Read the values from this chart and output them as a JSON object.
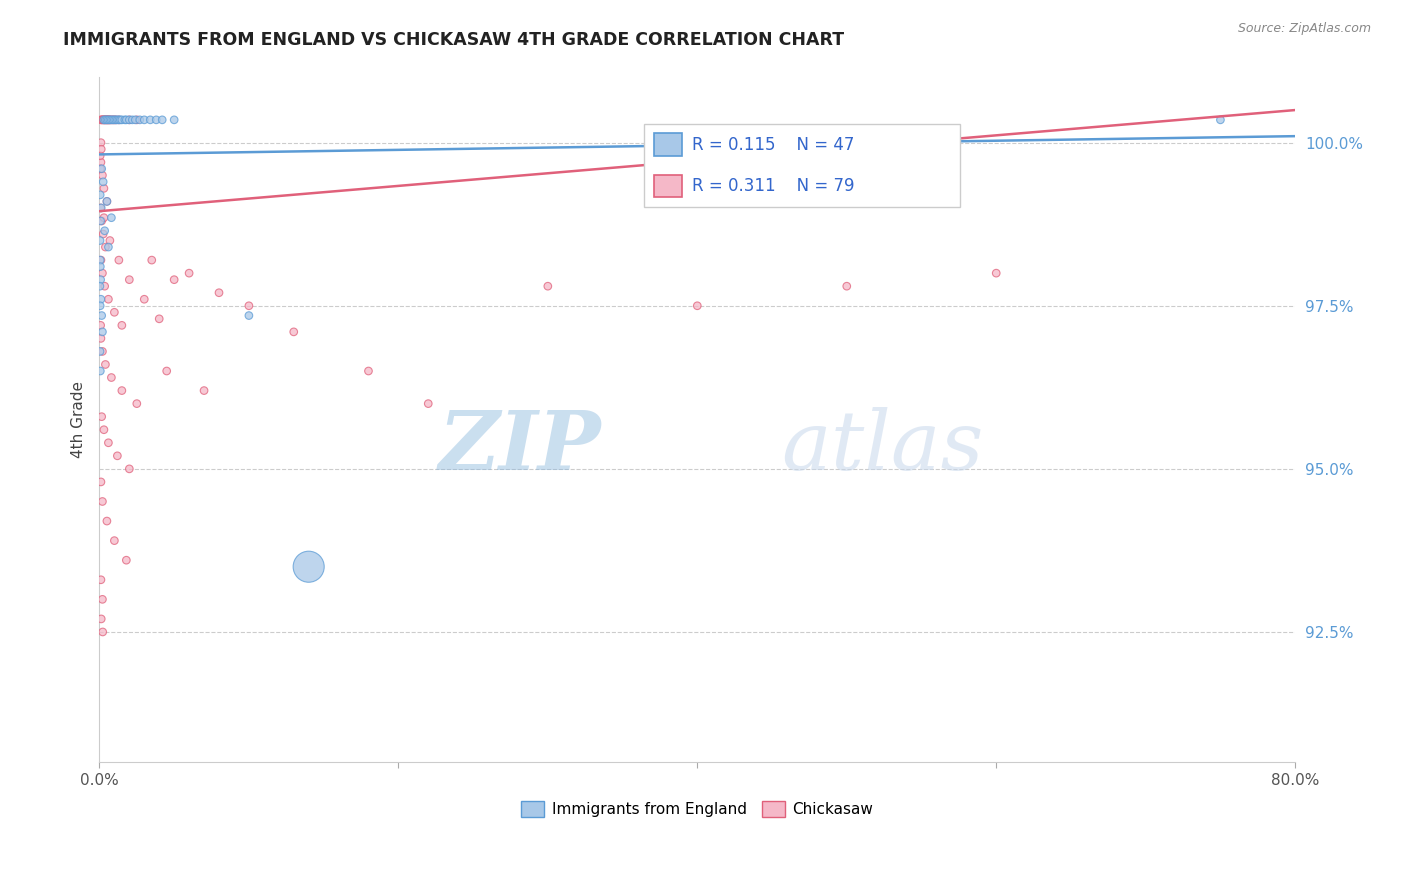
{
  "title": "IMMIGRANTS FROM ENGLAND VS CHICKASAW 4TH GRADE CORRELATION CHART",
  "source_text": "Source: ZipAtlas.com",
  "ylabel": "4th Grade",
  "xlim": [
    0.0,
    80.0
  ],
  "ylim": [
    90.5,
    101.0
  ],
  "yticks": [
    92.5,
    95.0,
    97.5,
    100.0
  ],
  "ytick_labels": [
    "92.5%",
    "95.0%",
    "97.5%",
    "100.0%"
  ],
  "xticks": [
    0.0,
    20.0,
    40.0,
    60.0,
    80.0
  ],
  "xtick_labels": [
    "0.0%",
    "",
    "",
    "",
    "80.0%"
  ],
  "R_england": 0.115,
  "N_england": 47,
  "R_chickasaw": 0.311,
  "N_chickasaw": 79,
  "england_fill_color": "#A8C8E8",
  "england_edge_color": "#5B9BD5",
  "chickasaw_fill_color": "#F5B8C8",
  "chickasaw_edge_color": "#E0607A",
  "england_line_color": "#5B9BD5",
  "chickasaw_line_color": "#E0607A",
  "watermark": "ZIPatlas",
  "watermark_color_zip": "#B0C8E8",
  "watermark_color_atlas": "#D0D8E8",
  "legend_england": "Immigrants from England",
  "legend_chickasaw": "Chickasaw",
  "england_line_x": [
    0.0,
    80.0
  ],
  "england_line_y": [
    99.82,
    100.1
  ],
  "chickasaw_line_x": [
    0.0,
    80.0
  ],
  "chickasaw_line_y": [
    98.95,
    100.5
  ],
  "england_scatter": [
    [
      0.3,
      100.35
    ],
    [
      0.4,
      100.35
    ],
    [
      0.5,
      100.35
    ],
    [
      0.6,
      100.35
    ],
    [
      0.7,
      100.35
    ],
    [
      0.8,
      100.35
    ],
    [
      0.9,
      100.35
    ],
    [
      1.0,
      100.35
    ],
    [
      1.1,
      100.35
    ],
    [
      1.2,
      100.35
    ],
    [
      1.3,
      100.35
    ],
    [
      1.4,
      100.35
    ],
    [
      1.5,
      100.35
    ],
    [
      1.7,
      100.35
    ],
    [
      1.8,
      100.35
    ],
    [
      2.0,
      100.35
    ],
    [
      2.2,
      100.35
    ],
    [
      2.4,
      100.35
    ],
    [
      2.7,
      100.35
    ],
    [
      3.0,
      100.35
    ],
    [
      3.4,
      100.35
    ],
    [
      3.8,
      100.35
    ],
    [
      4.2,
      100.35
    ],
    [
      5.0,
      100.35
    ],
    [
      0.15,
      99.6
    ],
    [
      0.25,
      99.4
    ],
    [
      0.5,
      99.1
    ],
    [
      0.8,
      98.85
    ],
    [
      0.05,
      99.2
    ],
    [
      0.12,
      99.0
    ],
    [
      0.35,
      98.65
    ],
    [
      0.6,
      98.4
    ],
    [
      0.05,
      98.2
    ],
    [
      0.08,
      97.9
    ],
    [
      0.1,
      97.6
    ],
    [
      0.15,
      97.35
    ],
    [
      0.2,
      97.1
    ],
    [
      10.0,
      97.35
    ],
    [
      0.08,
      98.8
    ],
    [
      0.04,
      98.5
    ],
    [
      0.06,
      98.1
    ],
    [
      0.03,
      97.8
    ],
    [
      0.05,
      97.5
    ],
    [
      75.0,
      100.35
    ],
    [
      0.04,
      96.8
    ],
    [
      0.06,
      96.5
    ],
    [
      14.0,
      93.5
    ]
  ],
  "england_sizes": [
    30,
    30,
    30,
    30,
    30,
    30,
    30,
    30,
    30,
    30,
    30,
    30,
    30,
    30,
    30,
    30,
    30,
    30,
    30,
    30,
    30,
    30,
    30,
    30,
    30,
    30,
    30,
    30,
    30,
    30,
    30,
    30,
    30,
    30,
    30,
    30,
    30,
    30,
    30,
    30,
    30,
    30,
    30,
    30,
    30,
    30,
    500
  ],
  "chickasaw_scatter": [
    [
      0.1,
      100.35
    ],
    [
      0.15,
      100.35
    ],
    [
      0.2,
      100.35
    ],
    [
      0.25,
      100.35
    ],
    [
      0.3,
      100.35
    ],
    [
      0.35,
      100.35
    ],
    [
      0.4,
      100.35
    ],
    [
      0.45,
      100.35
    ],
    [
      0.5,
      100.35
    ],
    [
      0.55,
      100.35
    ],
    [
      0.6,
      100.35
    ],
    [
      0.65,
      100.35
    ],
    [
      0.7,
      100.35
    ],
    [
      0.8,
      100.35
    ],
    [
      0.9,
      100.35
    ],
    [
      1.0,
      100.35
    ],
    [
      1.1,
      100.35
    ],
    [
      1.3,
      100.35
    ],
    [
      0.1,
      99.7
    ],
    [
      0.2,
      99.5
    ],
    [
      0.3,
      99.3
    ],
    [
      0.5,
      99.1
    ],
    [
      0.08,
      99.0
    ],
    [
      0.15,
      98.8
    ],
    [
      0.25,
      98.6
    ],
    [
      0.4,
      98.4
    ],
    [
      0.1,
      98.2
    ],
    [
      0.2,
      98.0
    ],
    [
      0.35,
      97.8
    ],
    [
      0.6,
      97.6
    ],
    [
      1.0,
      97.4
    ],
    [
      1.5,
      97.2
    ],
    [
      0.1,
      97.0
    ],
    [
      0.2,
      96.8
    ],
    [
      0.4,
      96.6
    ],
    [
      0.8,
      96.4
    ],
    [
      1.5,
      96.2
    ],
    [
      2.5,
      96.0
    ],
    [
      0.15,
      95.8
    ],
    [
      0.3,
      95.6
    ],
    [
      0.6,
      95.4
    ],
    [
      1.2,
      95.2
    ],
    [
      2.0,
      95.0
    ],
    [
      0.1,
      94.8
    ],
    [
      0.2,
      94.5
    ],
    [
      0.5,
      94.2
    ],
    [
      1.0,
      93.9
    ],
    [
      1.8,
      93.6
    ],
    [
      0.1,
      93.3
    ],
    [
      0.2,
      93.0
    ],
    [
      0.12,
      92.7
    ],
    [
      0.22,
      92.5
    ],
    [
      4.5,
      96.5
    ],
    [
      7.0,
      96.2
    ],
    [
      10.0,
      97.5
    ],
    [
      13.0,
      97.1
    ],
    [
      18.0,
      96.5
    ],
    [
      22.0,
      96.0
    ],
    [
      5.0,
      97.9
    ],
    [
      8.0,
      97.7
    ],
    [
      3.5,
      98.2
    ],
    [
      6.0,
      98.0
    ],
    [
      0.05,
      99.8
    ],
    [
      0.07,
      99.6
    ],
    [
      30.0,
      97.8
    ],
    [
      40.0,
      97.5
    ],
    [
      50.0,
      97.8
    ],
    [
      60.0,
      98.0
    ],
    [
      0.1,
      100.0
    ],
    [
      0.12,
      99.9
    ],
    [
      2.0,
      100.35
    ],
    [
      2.5,
      100.35
    ],
    [
      0.3,
      98.85
    ],
    [
      0.7,
      98.5
    ],
    [
      1.3,
      98.2
    ],
    [
      2.0,
      97.9
    ],
    [
      3.0,
      97.6
    ],
    [
      4.0,
      97.3
    ],
    [
      0.08,
      97.2
    ]
  ],
  "chickasaw_sizes": [
    30,
    30,
    30,
    30,
    30,
    30,
    30,
    30,
    30,
    30,
    30,
    30,
    30,
    30,
    30,
    30,
    30,
    30,
    30,
    30,
    30,
    30,
    30,
    30,
    30,
    30,
    30,
    30,
    30,
    30,
    30,
    30,
    30,
    30,
    30,
    30,
    30,
    30,
    30,
    30,
    30,
    30,
    30,
    30,
    30,
    30,
    30,
    30,
    30,
    30,
    30,
    30,
    30,
    30,
    30,
    30,
    30,
    30,
    30,
    30,
    30,
    30,
    30,
    30,
    30,
    30,
    30,
    30,
    30,
    30,
    30,
    30,
    30,
    30,
    30,
    30,
    30,
    30,
    30
  ]
}
